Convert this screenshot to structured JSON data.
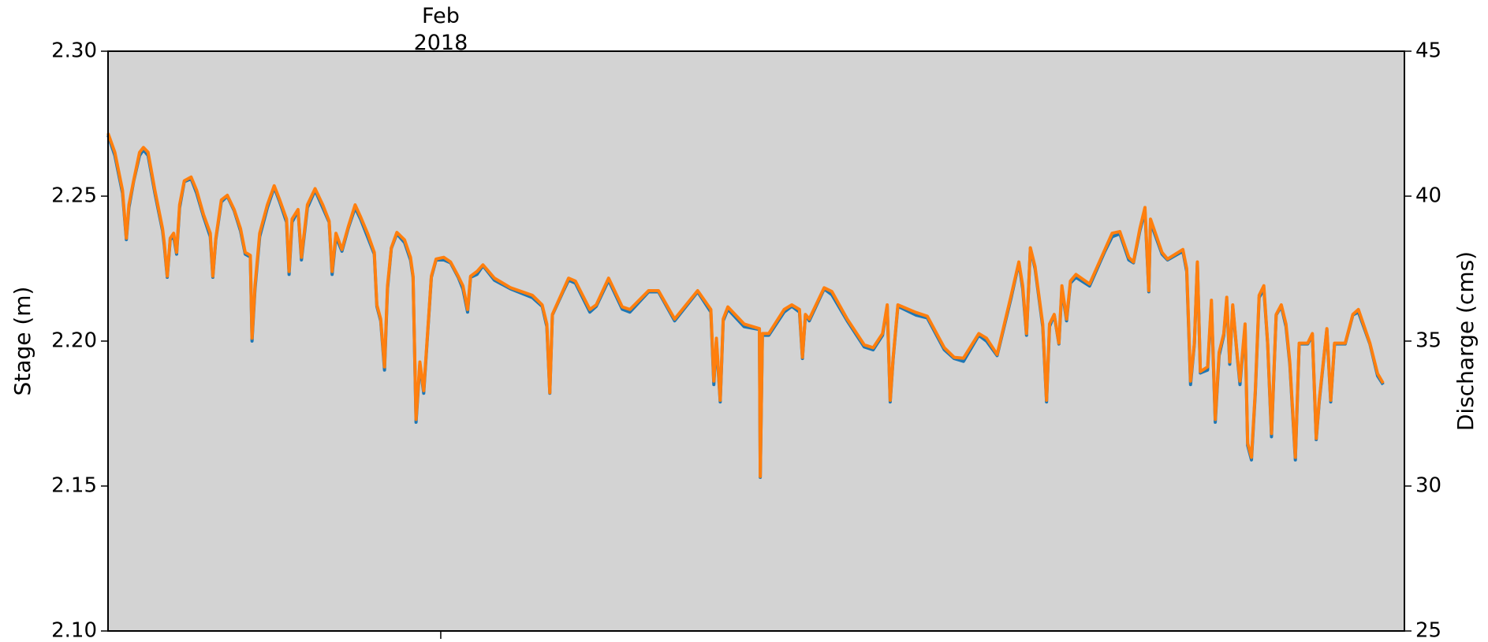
{
  "chart_data": {
    "type": "line",
    "ylabel": "Stage (m)",
    "ylabel_color": "blue",
    "y2label": "Discharge (cms)",
    "y2label_color": "green",
    "background": "#d3d3d3",
    "xlim": [
      0,
      30.43
    ],
    "xticks": [
      {
        "value": 7.81,
        "label": "Feb\n2018"
      }
    ],
    "ylim": [
      2.1,
      2.3
    ],
    "yticks": [
      {
        "value": 2.1,
        "label": "2.10"
      },
      2.15,
      {
        "value": 2.2,
        "label": "2.20"
      },
      2.25,
      {
        "value": 2.3,
        "label": "2.30"
      }
    ],
    "y2lim": [
      25,
      45
    ],
    "y2ticks": [
      25,
      30,
      35,
      40,
      45
    ],
    "x": [
      0.0,
      0.16,
      0.34,
      0.43,
      0.49,
      0.6,
      0.74,
      0.83,
      0.94,
      1.1,
      1.28,
      1.32,
      1.39,
      1.46,
      1.54,
      1.61,
      1.68,
      1.79,
      1.95,
      2.08,
      2.24,
      2.4,
      2.46,
      2.53,
      2.66,
      2.8,
      2.96,
      3.11,
      3.22,
      3.34,
      3.38,
      3.45,
      3.56,
      3.74,
      3.9,
      4.03,
      4.19,
      4.25,
      4.32,
      4.46,
      4.54,
      4.68,
      4.86,
      5.04,
      5.19,
      5.26,
      5.35,
      5.49,
      5.64,
      5.8,
      5.93,
      6.09,
      6.25,
      6.31,
      6.4,
      6.49,
      6.56,
      6.65,
      6.78,
      6.96,
      7.1,
      7.16,
      7.23,
      7.32,
      7.41,
      7.5,
      7.59,
      7.7,
      7.88,
      8.04,
      8.22,
      8.33,
      8.44,
      8.51,
      8.66,
      8.8,
      9.07,
      9.45,
      9.96,
      10.19,
      10.3,
      10.37,
      10.43,
      10.68,
      10.81,
      10.97,
      11.31,
      11.46,
      11.75,
      12.07,
      12.25,
      12.69,
      12.92,
      13.3,
      13.84,
      14.15,
      14.22,
      14.28,
      14.37,
      14.44,
      14.55,
      14.93,
      15.29,
      15.31,
      15.36,
      15.51,
      15.87,
      16.05,
      16.23,
      16.3,
      16.37,
      16.46,
      16.81,
      16.99,
      17.35,
      17.75,
      17.96,
      18.18,
      18.29,
      18.36,
      18.43,
      18.54,
      18.96,
      19.23,
      19.63,
      19.86,
      20.08,
      20.44,
      20.62,
      20.87,
      21.2,
      21.38,
      21.47,
      21.56,
      21.65,
      21.76,
      21.94,
      22.03,
      22.1,
      22.21,
      22.32,
      22.39,
      22.5,
      22.59,
      22.72,
      23.04,
      23.4,
      23.57,
      23.75,
      23.96,
      24.07,
      24.22,
      24.34,
      24.43,
      24.47,
      24.74,
      24.87,
      25.23,
      25.32,
      25.41,
      25.5,
      25.57,
      25.64,
      25.81,
      25.9,
      25.99,
      26.08,
      26.19,
      26.26,
      26.33,
      26.4,
      26.51,
      26.57,
      26.69,
      26.75,
      26.84,
      26.93,
      27.02,
      27.13,
      27.22,
      27.31,
      27.42,
      27.54,
      27.65,
      27.74,
      27.87,
      27.96,
      28.16,
      28.27,
      28.36,
      28.43,
      28.61,
      28.7,
      28.79,
      29.04,
      29.22,
      29.35,
      29.62,
      29.8,
      29.93
    ],
    "series": [
      {
        "color": "#1f77b4",
        "values": [
          2.271,
          2.264,
          2.251,
          2.235,
          2.246,
          2.255,
          2.264,
          2.266,
          2.264,
          2.251,
          2.238,
          2.233,
          2.222,
          2.235,
          2.236,
          2.23,
          2.246,
          2.255,
          2.256,
          2.251,
          2.243,
          2.236,
          2.222,
          2.235,
          2.248,
          2.25,
          2.245,
          2.238,
          2.23,
          2.229,
          2.2,
          2.218,
          2.236,
          2.246,
          2.253,
          2.248,
          2.241,
          2.223,
          2.241,
          2.245,
          2.228,
          2.246,
          2.252,
          2.246,
          2.241,
          2.223,
          2.236,
          2.231,
          2.239,
          2.246,
          2.242,
          2.236,
          2.23,
          2.212,
          2.207,
          2.19,
          2.218,
          2.232,
          2.237,
          2.234,
          2.228,
          2.222,
          2.172,
          2.192,
          2.182,
          2.202,
          2.222,
          2.228,
          2.228,
          2.227,
          2.222,
          2.218,
          2.21,
          2.222,
          2.223,
          2.226,
          2.221,
          2.218,
          2.215,
          2.212,
          2.205,
          2.182,
          2.209,
          2.217,
          2.221,
          2.22,
          2.21,
          2.212,
          2.221,
          2.211,
          2.21,
          2.217,
          2.217,
          2.207,
          2.217,
          2.21,
          2.185,
          2.2,
          2.179,
          2.207,
          2.211,
          2.205,
          2.204,
          2.153,
          2.202,
          2.202,
          2.21,
          2.212,
          2.21,
          2.194,
          2.209,
          2.207,
          2.218,
          2.216,
          2.207,
          2.198,
          2.197,
          2.202,
          2.212,
          2.179,
          2.194,
          2.212,
          2.209,
          2.208,
          2.197,
          2.194,
          2.193,
          2.202,
          2.2,
          2.195,
          2.215,
          2.227,
          2.218,
          2.202,
          2.232,
          2.225,
          2.205,
          2.179,
          2.205,
          2.209,
          2.199,
          2.218,
          2.207,
          2.22,
          2.222,
          2.219,
          2.231,
          2.236,
          2.237,
          2.228,
          2.227,
          2.238,
          2.245,
          2.217,
          2.241,
          2.23,
          2.228,
          2.231,
          2.224,
          2.185,
          2.199,
          2.227,
          2.189,
          2.19,
          2.213,
          2.172,
          2.195,
          2.202,
          2.214,
          2.192,
          2.212,
          2.194,
          2.185,
          2.205,
          2.164,
          2.159,
          2.182,
          2.215,
          2.218,
          2.199,
          2.167,
          2.209,
          2.212,
          2.205,
          2.192,
          2.159,
          2.199,
          2.199,
          2.202,
          2.166,
          2.179,
          2.204,
          2.179,
          2.199,
          2.199,
          2.209,
          2.21,
          2.199,
          2.188,
          2.185
        ]
      },
      {
        "color": "#ff7f0e",
        "axis": "y2",
        "values": [
          42.17,
          41.51,
          40.2,
          38.55,
          39.7,
          40.53,
          41.51,
          41.68,
          41.51,
          40.2,
          38.88,
          38.39,
          37.24,
          38.55,
          38.72,
          38.06,
          39.7,
          40.53,
          40.66,
          40.2,
          39.37,
          38.72,
          37.24,
          38.55,
          39.87,
          40.03,
          39.54,
          38.88,
          38.06,
          37.96,
          35.1,
          36.91,
          38.72,
          39.7,
          40.36,
          39.87,
          39.21,
          37.4,
          39.21,
          39.54,
          37.89,
          39.7,
          40.26,
          39.7,
          39.14,
          37.4,
          38.72,
          38.16,
          38.95,
          39.7,
          39.28,
          38.72,
          38.06,
          36.25,
          35.76,
          34.11,
          36.91,
          38.22,
          38.75,
          38.49,
          37.89,
          37.24,
          32.3,
          34.28,
          33.29,
          35.26,
          37.24,
          37.83,
          37.89,
          37.73,
          37.24,
          36.91,
          36.09,
          37.24,
          37.4,
          37.63,
          37.17,
          36.84,
          36.58,
          36.25,
          35.59,
          33.22,
          35.92,
          36.74,
          37.17,
          37.07,
          36.09,
          36.25,
          37.17,
          36.18,
          36.09,
          36.74,
          36.74,
          35.76,
          36.74,
          36.09,
          33.62,
          35.1,
          32.96,
          35.76,
          36.18,
          35.59,
          35.43,
          30.33,
          35.26,
          35.26,
          36.09,
          36.25,
          36.09,
          34.44,
          35.92,
          35.76,
          36.84,
          36.71,
          35.76,
          34.87,
          34.77,
          35.26,
          36.25,
          32.96,
          34.44,
          36.25,
          35.99,
          35.86,
          34.77,
          34.44,
          34.41,
          35.26,
          35.1,
          34.54,
          36.58,
          37.73,
          36.91,
          35.26,
          38.22,
          37.57,
          35.59,
          32.96,
          35.59,
          35.92,
          34.93,
          36.91,
          35.76,
          37.07,
          37.3,
          36.97,
          38.16,
          38.72,
          38.78,
          37.89,
          37.73,
          38.88,
          39.61,
          36.74,
          39.21,
          38.06,
          37.83,
          38.16,
          37.5,
          33.62,
          34.93,
          37.73,
          33.95,
          34.11,
          36.41,
          32.3,
          34.61,
          35.26,
          36.51,
          34.28,
          36.25,
          34.44,
          33.62,
          35.59,
          31.48,
          30.99,
          33.29,
          36.58,
          36.91,
          34.93,
          31.81,
          35.92,
          36.25,
          35.59,
          34.28,
          30.99,
          34.93,
          34.93,
          35.26,
          31.64,
          32.96,
          35.43,
          32.96,
          34.93,
          34.93,
          35.92,
          36.09,
          34.93,
          33.88,
          33.55
        ]
      }
    ]
  }
}
